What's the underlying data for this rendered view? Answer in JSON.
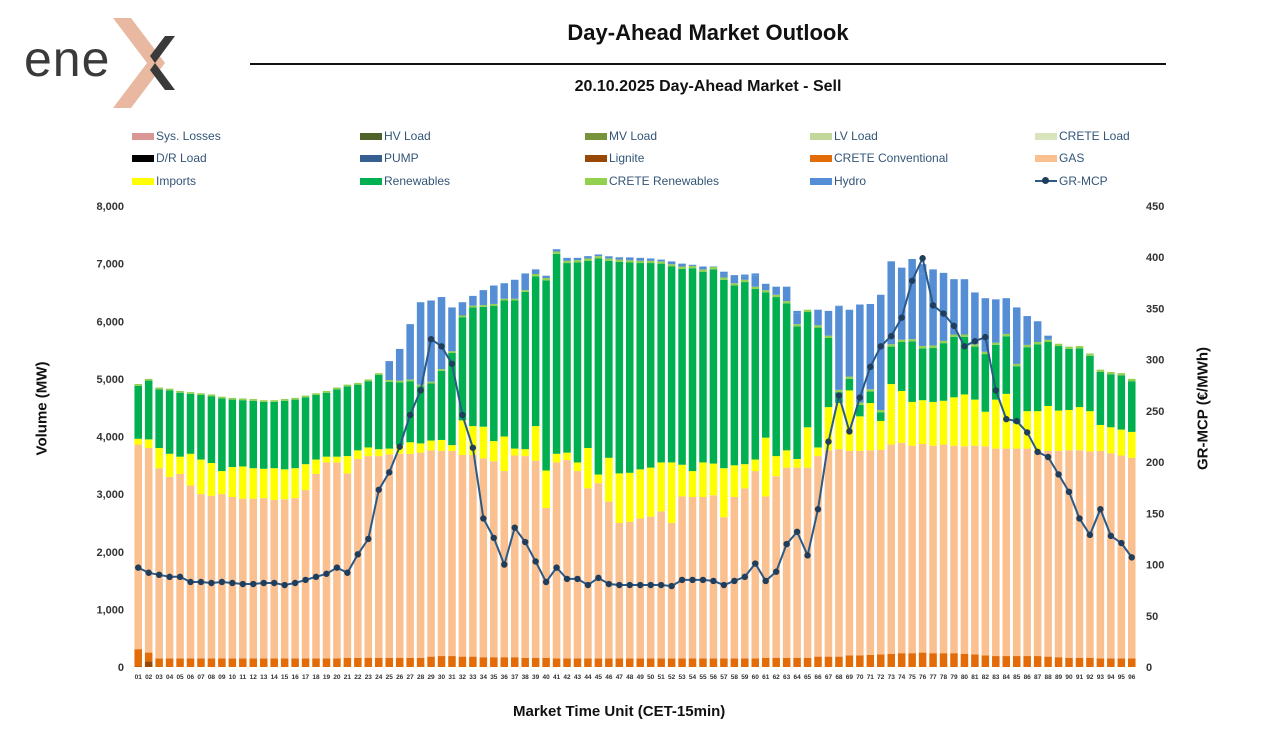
{
  "header": {
    "title": "Day-Ahead Market Outlook",
    "subtitle": "20.10.2025  Day-Ahead Market - Sell",
    "logo_text": "ene",
    "logo_mark": "chevron-x-logo"
  },
  "colors": {
    "Sys. Losses": "#d99694",
    "HV Load": "#4f6228",
    "MV Load": "#77933c",
    "LV Load": "#c4d79b",
    "CRETE Load": "#d8e4bc",
    "D/R Load": "#000000",
    "PUMP": "#366092",
    "Lignite": "#974706",
    "CRETE Conventional": "#e36c09",
    "GAS": "#fac090",
    "Imports": "#ffff00",
    "Renewables": "#00b050",
    "CRETE Renewables": "#92d050",
    "Hydro": "#558ed5",
    "GR-MCP": "#2b5a87"
  },
  "chart_data": {
    "type": "bar",
    "title": "20.10.2025  Day-Ahead Market - Sell",
    "xlabel": "Market Time Unit (CET-15min)",
    "ylabel": "Volume (MW)",
    "y2label": "GR-MCP (€/MWh)",
    "ylim": [
      0,
      8000
    ],
    "y2lim": [
      0,
      450
    ],
    "yticks": [
      "0",
      "1,000",
      "2,000",
      "3,000",
      "4,000",
      "5,000",
      "6,000",
      "7,000",
      "8,000"
    ],
    "y2ticks": [
      "0",
      "50",
      "100",
      "150",
      "200",
      "250",
      "300",
      "350",
      "400",
      "450"
    ],
    "legend": [
      "Sys. Losses",
      "HV Load",
      "MV Load",
      "LV Load",
      "CRETE Load",
      "D/R Load",
      "PUMP",
      "Lignite",
      "CRETE Conventional",
      "GAS",
      "Imports",
      "Renewables",
      "CRETE Renewables",
      "Hydro",
      "GR-MCP"
    ],
    "categories": [
      "01",
      "02",
      "03",
      "04",
      "05",
      "06",
      "07",
      "08",
      "09",
      "10",
      "11",
      "12",
      "13",
      "14",
      "15",
      "16",
      "17",
      "18",
      "19",
      "20",
      "21",
      "22",
      "23",
      "24",
      "25",
      "26",
      "27",
      "28",
      "29",
      "30",
      "31",
      "32",
      "33",
      "34",
      "35",
      "36",
      "37",
      "38",
      "39",
      "40",
      "41",
      "42",
      "43",
      "44",
      "45",
      "46",
      "47",
      "48",
      "49",
      "50",
      "51",
      "52",
      "53",
      "54",
      "55",
      "56",
      "57",
      "58",
      "59",
      "60",
      "61",
      "62",
      "63",
      "64",
      "65",
      "66",
      "67",
      "68",
      "69",
      "70",
      "71",
      "72",
      "73",
      "74",
      "75",
      "76",
      "77",
      "78",
      "79",
      "80",
      "81",
      "82",
      "83",
      "84",
      "85",
      "86",
      "87",
      "88",
      "89",
      "90",
      "91",
      "92",
      "93",
      "94",
      "95",
      "96"
    ],
    "totals": [
      4900,
      4870,
      4820,
      4800,
      4760,
      4740,
      4720,
      4700,
      4660,
      4640,
      4630,
      4620,
      4600,
      4600,
      4620,
      4640,
      4680,
      4720,
      4760,
      4820,
      4870,
      4900,
      4960,
      5070,
      5310,
      5520,
      5910,
      6300,
      6320,
      6380,
      6200,
      6300,
      6440,
      6540,
      6620,
      6660,
      6720,
      6800,
      6900,
      6790,
      7250,
      7100,
      7100,
      7130,
      7160,
      7130,
      7110,
      7110,
      7100,
      7090,
      7070,
      7040,
      7000,
      6980,
      6950,
      6900,
      6860,
      6800,
      6810,
      6830,
      6650,
      6600,
      6600,
      6180,
      6180,
      6200,
      6180,
      6270,
      6200,
      6290,
      6300,
      6460,
      6580,
      6740,
      6800,
      6990,
      6900,
      6800,
      6660,
      6580,
      6460,
      6400,
      6380,
      6350,
      6240,
      6080,
      6000,
      5740,
      5600,
      5500,
      5460,
      5400,
      5140,
      5100,
      5060,
      5000
    ],
    "series": [
      {
        "name": "Sys. Losses",
        "values": [
          0,
          0,
          0,
          0,
          0,
          0,
          0,
          0,
          0,
          0,
          0,
          0,
          0,
          0,
          0,
          0,
          0,
          0,
          0,
          0,
          0,
          0,
          0,
          0,
          0,
          0,
          0,
          0,
          0,
          0,
          0,
          0,
          0,
          0,
          0,
          0,
          0,
          0,
          0,
          0,
          0,
          0,
          0,
          0,
          0,
          0,
          0,
          0,
          0,
          0,
          0,
          0,
          0,
          0,
          0,
          0,
          0,
          0,
          0,
          0,
          0,
          0,
          0,
          0,
          0,
          0,
          0,
          0,
          0,
          0,
          0,
          0,
          0,
          0,
          0,
          0,
          0,
          0,
          0,
          0,
          0,
          0,
          0,
          0,
          0,
          0,
          0,
          0,
          0,
          0,
          0,
          0,
          0,
          0,
          0,
          0
        ]
      },
      {
        "name": "Lignite",
        "values": [
          10,
          100,
          0,
          0,
          0,
          0,
          0,
          0,
          0,
          0,
          0,
          0,
          0,
          0,
          0,
          0,
          0,
          0,
          0,
          0,
          0,
          0,
          0,
          0,
          0,
          0,
          0,
          0,
          0,
          0,
          0,
          0,
          0,
          0,
          0,
          0,
          0,
          0,
          0,
          0,
          0,
          0,
          0,
          0,
          0,
          0,
          0,
          0,
          0,
          0,
          0,
          0,
          0,
          0,
          0,
          0,
          0,
          0,
          0,
          0,
          0,
          0,
          0,
          0,
          0,
          0,
          0,
          0,
          0,
          0,
          0,
          0,
          0,
          0,
          0,
          0,
          0,
          0,
          0,
          0,
          0,
          0,
          0,
          0,
          0,
          0,
          0,
          0,
          0,
          0,
          0,
          0,
          0,
          0,
          0,
          0
        ]
      },
      {
        "name": "CRETE Conventional",
        "values": [
          300,
          150,
          150,
          150,
          150,
          150,
          150,
          150,
          150,
          150,
          150,
          150,
          150,
          150,
          150,
          150,
          150,
          150,
          150,
          150,
          160,
          160,
          160,
          160,
          160,
          160,
          160,
          160,
          180,
          190,
          190,
          180,
          180,
          170,
          170,
          170,
          170,
          160,
          160,
          160,
          150,
          150,
          150,
          150,
          150,
          150,
          150,
          150,
          150,
          150,
          150,
          150,
          150,
          150,
          150,
          150,
          150,
          150,
          150,
          150,
          160,
          160,
          160,
          160,
          160,
          180,
          180,
          180,
          200,
          200,
          210,
          220,
          230,
          240,
          240,
          250,
          240,
          240,
          240,
          230,
          220,
          200,
          190,
          190,
          190,
          190,
          190,
          180,
          170,
          160,
          160,
          160,
          150,
          150,
          150,
          150
        ]
      },
      {
        "name": "GAS",
        "values": [
          3550,
          3550,
          3300,
          3150,
          3200,
          3000,
          2850,
          2820,
          2850,
          2800,
          2770,
          2770,
          2780,
          2750,
          2760,
          2780,
          2920,
          3200,
          3400,
          3400,
          3200,
          3450,
          3500,
          3500,
          3530,
          3540,
          3540,
          3560,
          3580,
          3560,
          3560,
          3500,
          3500,
          3450,
          3400,
          3230,
          3500,
          3500,
          3420,
          2600,
          3400,
          3440,
          3250,
          2950,
          3040,
          2720,
          2350,
          2370,
          2430,
          2460,
          2550,
          2350,
          2810,
          2800,
          2800,
          2830,
          2450,
          2800,
          2950,
          3250,
          2800,
          3150,
          3300,
          3300,
          3300,
          3480,
          3580,
          3600,
          3550,
          3550,
          3550,
          3550,
          3630,
          3650,
          3600,
          3620,
          3600,
          3620,
          3600,
          3600,
          3620,
          3630,
          3600,
          3600,
          3600,
          3600,
          3560,
          3570,
          3580,
          3600,
          3600,
          3580,
          3600,
          3560,
          3520,
          3480
        ]
      },
      {
        "name": "Imports",
        "values": [
          100,
          150,
          350,
          400,
          300,
          550,
          600,
          570,
          400,
          520,
          560,
          530,
          510,
          550,
          520,
          520,
          450,
          250,
          100,
          100,
          300,
          150,
          150,
          120,
          100,
          150,
          200,
          160,
          170,
          190,
          100,
          600,
          500,
          550,
          350,
          600,
          120,
          120,
          600,
          650,
          150,
          130,
          150,
          700,
          150,
          760,
          860,
          850,
          850,
          850,
          850,
          1050,
          550,
          450,
          600,
          550,
          850,
          550,
          420,
          200,
          1020,
          350,
          300,
          150,
          700,
          150,
          750,
          800,
          1050,
          600,
          820,
          500,
          1050,
          900,
          760,
          760,
          760,
          760,
          840,
          900,
          800,
          600,
          850,
          950,
          440,
          650,
          690,
          780,
          700,
          700,
          750,
          700,
          450,
          450,
          450,
          450
        ]
      },
      {
        "name": "Renewables",
        "values": [
          920,
          1020,
          1020,
          1100,
          1110,
          1040,
          1120,
          1160,
          1260,
          1170,
          1150,
          1170,
          1160,
          1150,
          1190,
          1190,
          1160,
          1120,
          1110,
          1170,
          1210,
          1140,
          1150,
          1290,
          1160,
          1090,
          1060,
          990,
          990,
          1200,
          1600,
          1790,
          2060,
          2080,
          2350,
          2360,
          2570,
          2730,
          2600,
          3300,
          3470,
          3290,
          3470,
          3250,
          3750,
          3420,
          3670,
          3650,
          3580,
          3550,
          3450,
          3400,
          3400,
          3520,
          3310,
          3370,
          3270,
          3120,
          3160,
          2960,
          2520,
          2760,
          2550,
          2300,
          2000,
          2080,
          1200,
          190,
          200,
          200,
          200,
          150,
          650,
          850,
          1050,
          900,
          940,
          1000,
          1050,
          1000,
          920,
          1000,
          950,
          1000,
          990,
          1110,
          1160,
          1110,
          1120,
          1060,
          1020,
          960,
          920,
          920,
          940,
          880
        ]
      },
      {
        "name": "CRETE Renewables",
        "values": [
          30,
          30,
          30,
          30,
          30,
          30,
          30,
          30,
          30,
          30,
          30,
          30,
          30,
          30,
          30,
          30,
          30,
          30,
          30,
          30,
          30,
          30,
          30,
          30,
          30,
          30,
          30,
          30,
          30,
          30,
          30,
          30,
          30,
          30,
          30,
          30,
          30,
          30,
          40,
          40,
          40,
          40,
          40,
          40,
          40,
          40,
          40,
          40,
          40,
          40,
          40,
          40,
          40,
          40,
          40,
          40,
          40,
          40,
          40,
          40,
          40,
          40,
          40,
          40,
          40,
          40,
          40,
          40,
          40,
          40,
          40,
          40,
          40,
          40,
          40,
          40,
          40,
          40,
          40,
          40,
          40,
          40,
          40,
          40,
          40,
          40,
          40,
          40,
          40,
          40,
          40,
          40,
          40,
          40,
          40,
          40
        ]
      },
      {
        "name": "Hydro",
        "values": [
          0,
          0,
          0,
          0,
          0,
          0,
          0,
          0,
          0,
          0,
          0,
          0,
          0,
          0,
          0,
          0,
          0,
          0,
          0,
          0,
          0,
          0,
          0,
          0,
          320,
          540,
          960,
          1430,
          1410,
          1250,
          760,
          230,
          170,
          260,
          320,
          270,
          330,
          290,
          80,
          40,
          40,
          50,
          40,
          40,
          30,
          30,
          40,
          40,
          50,
          40,
          30,
          40,
          50,
          20,
          50,
          10,
          50,
          140,
          50,
          190,
          110,
          140,
          210,
          190,
          0,
          100,
          430,
          1450,
          1160,
          1700,
          1480,
          2000,
          1440,
          1250,
          1390,
          1260,
          1320,
          1180,
          960,
          960,
          900,
          930,
          750,
          620,
          980,
          500,
          360,
          70,
          0,
          0,
          0,
          0,
          0,
          0,
          0,
          0
        ]
      }
    ],
    "line": {
      "name": "GR-MCP",
      "values": [
        97,
        92,
        90,
        88,
        88,
        83,
        83,
        82,
        83,
        82,
        81,
        81,
        82,
        82,
        80,
        82,
        85,
        88,
        91,
        97,
        92,
        110,
        125,
        173,
        190,
        215,
        246,
        270,
        320,
        313,
        296,
        246,
        214,
        145,
        126,
        100,
        136,
        122,
        103,
        83,
        97,
        86,
        86,
        80,
        87,
        81,
        80,
        80,
        80,
        80,
        80,
        79,
        85,
        85,
        85,
        84,
        80,
        84,
        88,
        101,
        84,
        93,
        120,
        132,
        109,
        154,
        220,
        265,
        230,
        263,
        293,
        313,
        323,
        341,
        377,
        399,
        353,
        345,
        333,
        313,
        318,
        322,
        270,
        242,
        240,
        229,
        210,
        205,
        188,
        171,
        145,
        129,
        154,
        128,
        121,
        107
      ]
    }
  }
}
